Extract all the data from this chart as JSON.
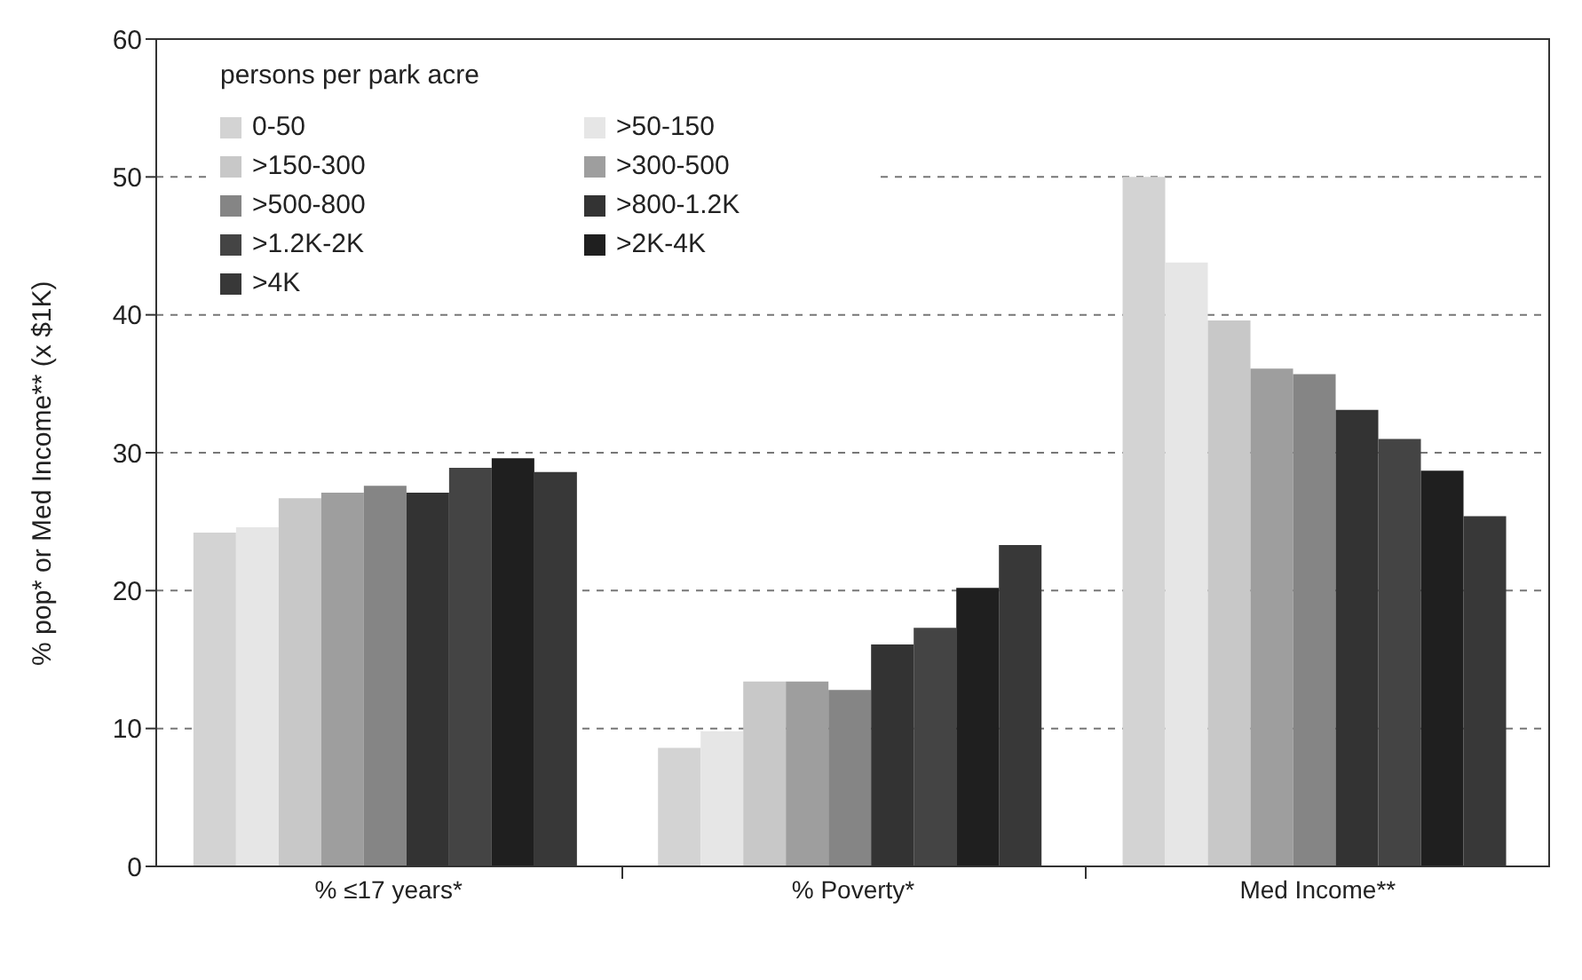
{
  "chart_data": {
    "type": "bar",
    "categories": [
      "% ≤17 years*",
      "% Poverty*",
      "Med Income**"
    ],
    "ylabel": "% pop* or Med Income** (x $1K)",
    "legend_title": "persons per park acre",
    "ylim": [
      0,
      60
    ],
    "yticks": [
      0,
      10,
      20,
      30,
      40,
      50,
      60
    ],
    "grid": "y",
    "legend": "top left",
    "series": [
      {
        "name": "0-50",
        "color": "#d3d3d3",
        "values": [
          24.2,
          8.6,
          50
        ]
      },
      {
        "name": ">50-150",
        "color": "#e6e6e6",
        "values": [
          24.6,
          9.8,
          43.8
        ]
      },
      {
        "name": ">150-300",
        "color": "#c8c8c8",
        "values": [
          26.7,
          13.4,
          39.6
        ]
      },
      {
        "name": ">300-500",
        "color": "#9e9e9e",
        "values": [
          27.1,
          13.4,
          36.1
        ]
      },
      {
        "name": ">500-800",
        "color": "#858585",
        "values": [
          27.6,
          12.8,
          35.7
        ]
      },
      {
        "name": ">800-1.2K",
        "color": "#333333",
        "values": [
          27.1,
          16.1,
          33.1
        ]
      },
      {
        "name": ">1.2K-2K",
        "color": "#444444",
        "values": [
          28.9,
          17.3,
          31.0
        ]
      },
      {
        "name": ">2K-4K",
        "color": "#1f1f1f",
        "values": [
          29.6,
          20.2,
          28.7
        ]
      },
      {
        "name": ">4K",
        "color": "#383838",
        "values": [
          28.6,
          23.3,
          25.4
        ]
      }
    ]
  }
}
